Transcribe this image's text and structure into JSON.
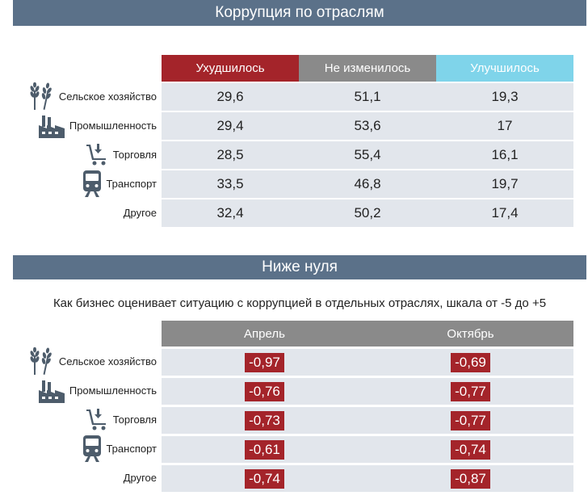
{
  "section1": {
    "title": "Коррупция по отраслям"
  },
  "section2": {
    "title": "Ниже нуля",
    "subtitle": "Как бизнес оценивает ситуацию с коррупцией в отдельных отраслях, шкала от -5 до +5"
  },
  "colors": {
    "header_bar": "#5b7189",
    "worse": "#a4242a",
    "unchanged": "#8a8a8a",
    "better": "#7fd4ea",
    "row_bg": "#e2e6ec",
    "badge": "#a4242a"
  },
  "rows": [
    {
      "label": "Сельское хозяйство",
      "icon": "wheat-icon"
    },
    {
      "label": "Промышленность",
      "icon": "factory-icon"
    },
    {
      "label": "Торговля",
      "icon": "shopping-cart-icon"
    },
    {
      "label": "Транспорт",
      "icon": "train-icon"
    },
    {
      "label": "Другое",
      "icon": ""
    }
  ],
  "chart_data": [
    {
      "type": "table",
      "columns": [
        "Ухудшилось",
        "Не изменилось",
        "Улучшилось"
      ],
      "categories": [
        "Сельское хозяйство",
        "Промышленность",
        "Торговля",
        "Транспорт",
        "Другое"
      ],
      "values": [
        [
          "29,6",
          "51,1",
          "19,3"
        ],
        [
          "29,4",
          "53,6",
          "17"
        ],
        [
          "28,5",
          "55,4",
          "16,1"
        ],
        [
          "33,5",
          "46,8",
          "19,7"
        ],
        [
          "32,4",
          "50,2",
          "17,4"
        ]
      ]
    },
    {
      "type": "table",
      "columns": [
        "Апрель",
        "Октябрь"
      ],
      "categories": [
        "Сельское хозяйство",
        "Промышленность",
        "Торговля",
        "Транспорт",
        "Другое"
      ],
      "values": [
        [
          "-0,97",
          "-0,69"
        ],
        [
          "-0,76",
          "-0,77"
        ],
        [
          "-0,73",
          "-0,77"
        ],
        [
          "-0,61",
          "-0,74"
        ],
        [
          "-0,74",
          "-0,87"
        ]
      ]
    }
  ]
}
